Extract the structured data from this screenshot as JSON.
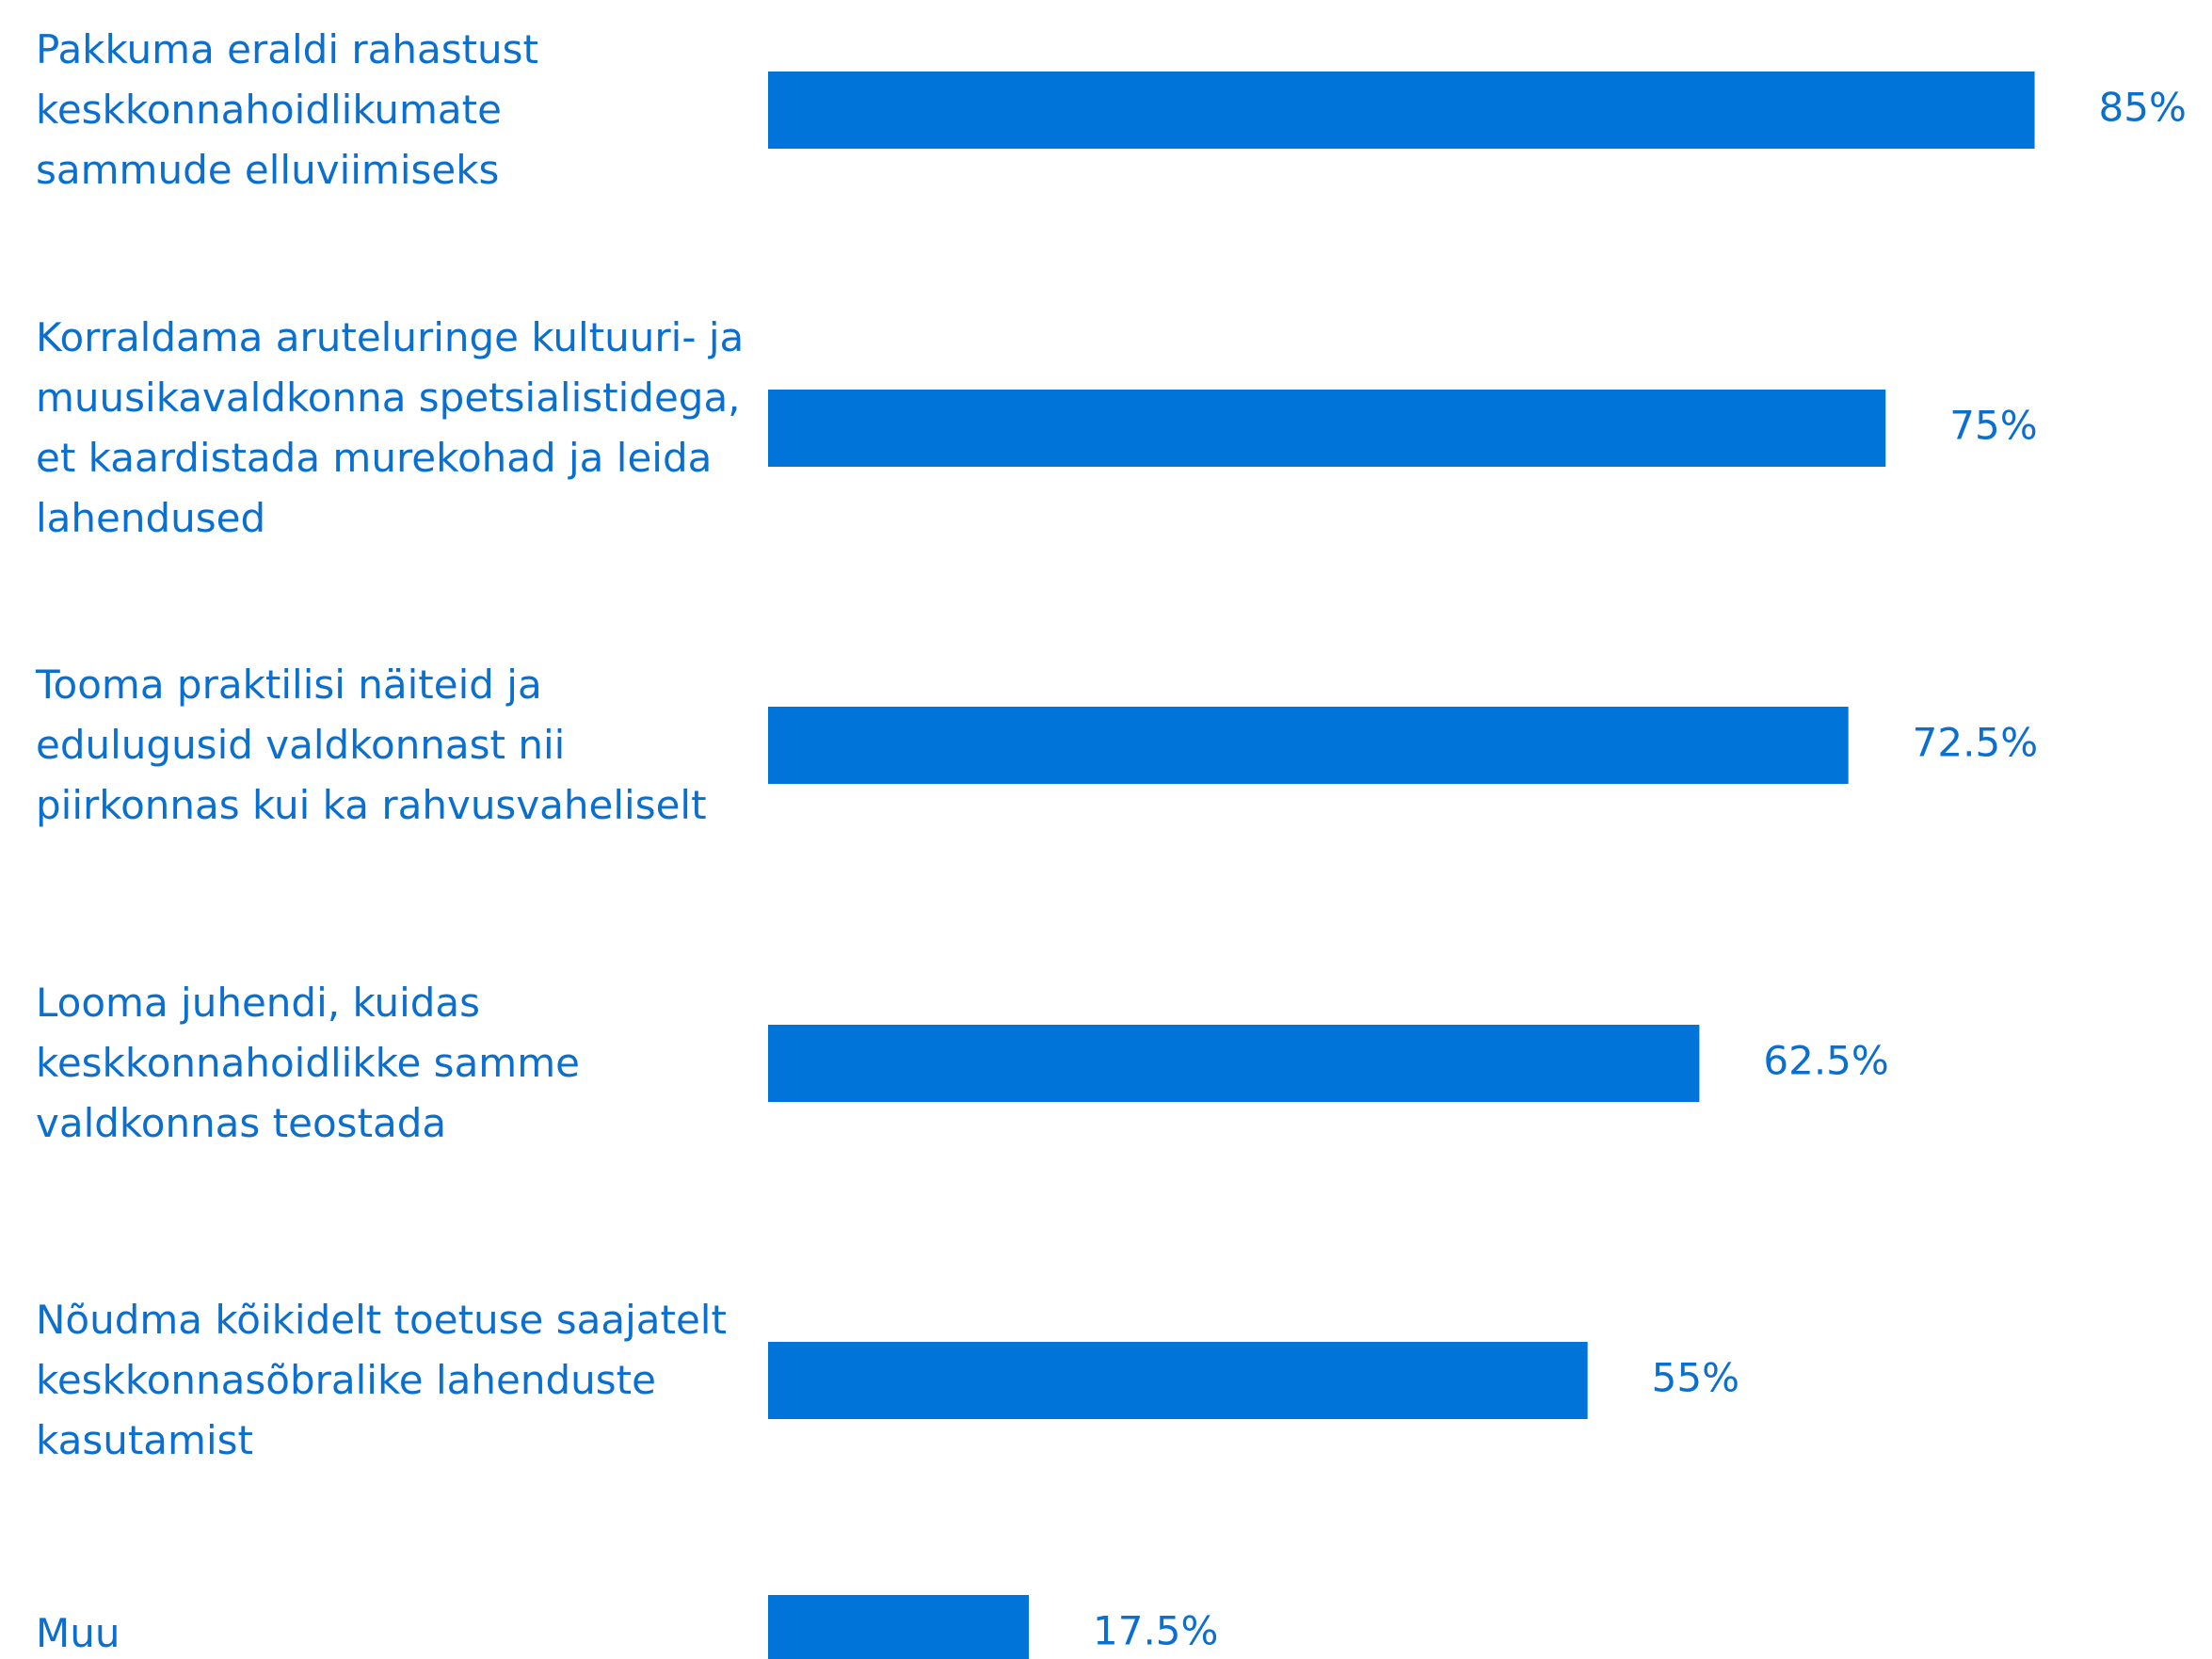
{
  "chart_data": {
    "type": "bar",
    "orientation": "horizontal",
    "categories": [
      "Pakkuma eraldi rahastust\nkeskkonnahoidlikumate\nsammude elluviimiseks",
      "Korraldama aruteluringe kultuuri- ja\nmuusikavaldkonna spetsialistidega,\net kaardistada murekohad ja leida\nlahendused",
      "Tooma praktilisi näiteid ja\nedulugusid valdkonnast nii\npiirkonnas kui ka rahvusvaheliselt",
      "Looma juhendi, kuidas\nkeskkonnahoidlikke samme\nvaldkonnas teostada",
      "Nõudma kõikidelt toetuse saajatelt\nkeskkonnasõbralike lahenduste\nkasutamist",
      "Muu"
    ],
    "values": [
      85,
      75,
      72.5,
      62.5,
      55,
      17.5
    ],
    "value_labels": [
      "85%",
      "75%",
      "72.5%",
      "62.5%",
      "55%",
      "17.5%"
    ],
    "color": "#0074d9"
  }
}
